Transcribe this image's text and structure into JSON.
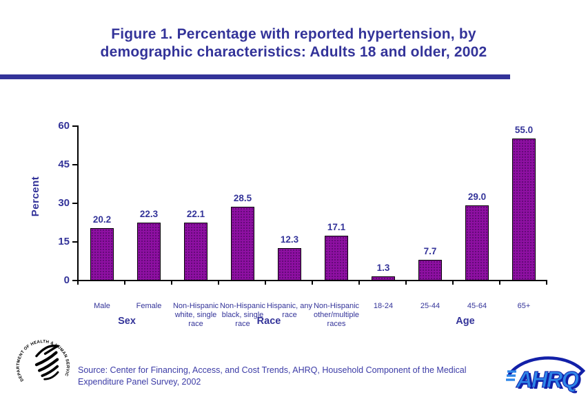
{
  "page": {
    "title_line1": "Figure 1. Percentage with reported hypertension, by",
    "title_line2": "demographic characteristics: Adults 18 and older, 2002"
  },
  "chart_data": {
    "type": "bar",
    "title": "Figure 1. Percentage with reported hypertension, by demographic characteristics: Adults 18 and older, 2002",
    "categories": [
      "Male",
      "Female",
      "Non-Hispanic white, single race",
      "Non-Hispanic black, single race",
      "Hispanic, any race",
      "Non-Hispanic other/multiple races",
      "18-24",
      "25-44",
      "45-64",
      "65+"
    ],
    "values": [
      20.2,
      22.3,
      22.1,
      28.5,
      12.3,
      17.1,
      1.3,
      7.7,
      29.0,
      55.0
    ],
    "value_labels": [
      "20.2",
      "22.3",
      "22.1",
      "28.5",
      "12.3",
      "17.1",
      "1.3",
      "7.7",
      "29.0",
      "55.0"
    ],
    "groups": [
      {
        "label": "Sex",
        "from": 0,
        "to": 1
      },
      {
        "label": "Race",
        "from": 2,
        "to": 5
      },
      {
        "label": "Age",
        "from": 6,
        "to": 9
      }
    ],
    "xlabel": "",
    "ylabel": "Percent",
    "yticks": [
      0,
      15,
      30,
      45,
      60
    ],
    "ylim": [
      0,
      60
    ],
    "grid": false,
    "legend": "none",
    "data_labels": true
  },
  "footer": {
    "source": "Source: Center for Financing, Access, and Cost Trends, AHRQ, Household Component of the Medical Expenditure Panel Survey, 2002",
    "hhs_seal_text": "DEPARTMENT OF HEALTH & HUMAN SERVICES·USA",
    "ahrq_logo_text": "AHRQ"
  },
  "colors": {
    "accent_navy": "#333399",
    "source_blue": "#3B3BA6",
    "bar_purple": "#8E10A2",
    "bar_border": "#000000",
    "axis_black": "#000000",
    "ahrq_light_blue": "#2E86E8",
    "ahrq_dark_blue": "#1220A8",
    "hhs_black": "#000000"
  }
}
